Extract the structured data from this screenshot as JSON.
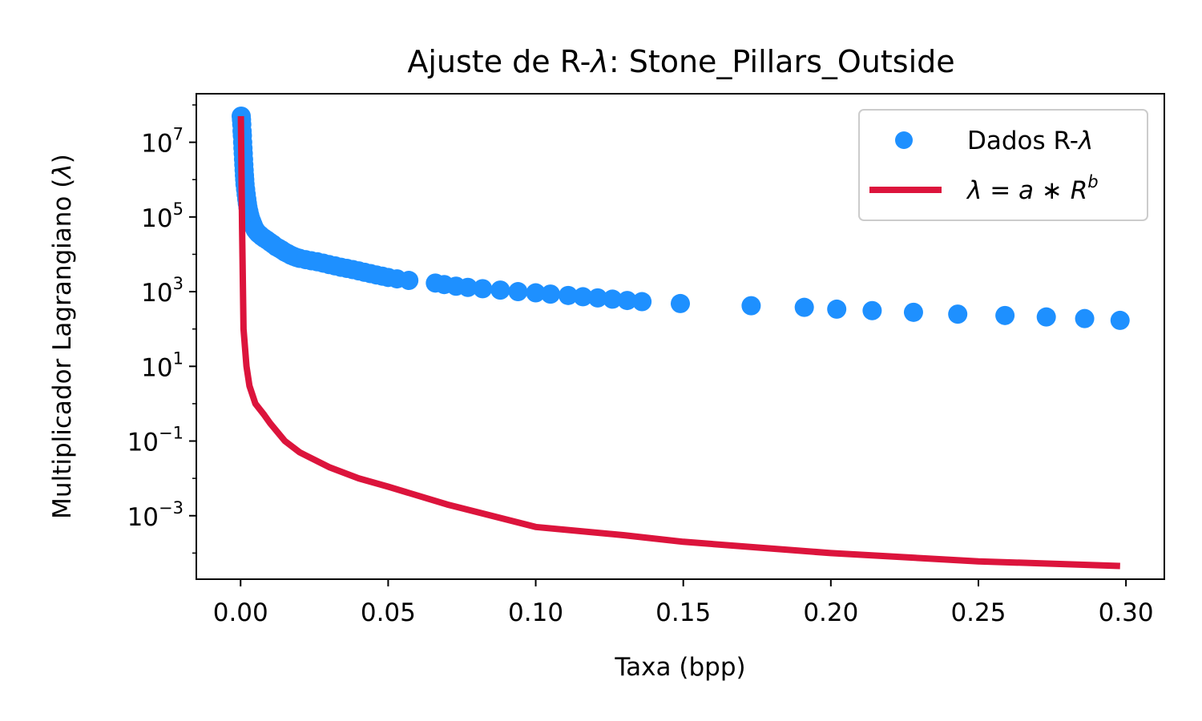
{
  "chart_data": {
    "type": "scatter",
    "title": "Ajuste de R-λ: Stone_Pillars_Outside",
    "xlabel": "Taxa (bpp)",
    "ylabel": "Multiplicador Lagrangiano (λ)",
    "yscale": "log",
    "xlim": [
      -0.015,
      0.313
    ],
    "ylim_log10": [
      -4.7,
      8.3
    ],
    "grid": false,
    "legend_position": "top-right",
    "x_ticks": [
      {
        "value": 0.0,
        "label": "0.00"
      },
      {
        "value": 0.05,
        "label": "0.05"
      },
      {
        "value": 0.1,
        "label": "0.10"
      },
      {
        "value": 0.15,
        "label": "0.15"
      },
      {
        "value": 0.2,
        "label": "0.20"
      },
      {
        "value": 0.25,
        "label": "0.25"
      },
      {
        "value": 0.3,
        "label": "0.30"
      }
    ],
    "y_ticks": [
      {
        "exp": 7,
        "base": "10",
        "sup": "7"
      },
      {
        "exp": 5,
        "base": "10",
        "sup": "5"
      },
      {
        "exp": 3,
        "base": "10",
        "sup": "3"
      },
      {
        "exp": 1,
        "base": "10",
        "sup": "1"
      },
      {
        "exp": -1,
        "base": "10",
        "sup": "−1"
      },
      {
        "exp": -3,
        "base": "10",
        "sup": "−3"
      }
    ],
    "series": [
      {
        "name": "Dados R-λ",
        "kind": "scatter",
        "color": "#1e90ff",
        "x": [
          0.0002,
          0.0003,
          0.0004,
          0.0005,
          0.0006,
          0.0007,
          0.0008,
          0.0009,
          0.001,
          0.0011,
          0.0012,
          0.0013,
          0.0014,
          0.0015,
          0.0017,
          0.0019,
          0.0021,
          0.0023,
          0.0025,
          0.0028,
          0.0031,
          0.0034,
          0.0038,
          0.0042,
          0.0046,
          0.005,
          0.0055,
          0.006,
          0.0066,
          0.0072,
          0.008,
          0.009,
          0.01,
          0.011,
          0.012,
          0.013,
          0.014,
          0.015,
          0.016,
          0.017,
          0.018,
          0.019,
          0.02,
          0.022,
          0.024,
          0.026,
          0.028,
          0.03,
          0.032,
          0.034,
          0.036,
          0.038,
          0.04,
          0.042,
          0.044,
          0.046,
          0.048,
          0.05,
          0.053,
          0.057,
          0.066,
          0.069,
          0.073,
          0.077,
          0.082,
          0.088,
          0.094,
          0.1,
          0.105,
          0.111,
          0.116,
          0.121,
          0.126,
          0.131,
          0.136,
          0.149,
          0.173,
          0.191,
          0.202,
          0.214,
          0.228,
          0.243,
          0.259,
          0.273,
          0.286,
          0.298
        ],
        "y": [
          50000000,
          40000000,
          30000000,
          20000000,
          15000000,
          10000000,
          7000000,
          5000000,
          3500000,
          2500000,
          1800000,
          1300000,
          1000000,
          750000,
          550000,
          400000,
          300000,
          230000,
          180000,
          140000,
          110000,
          90000,
          75000,
          62000,
          52000,
          45000,
          40000,
          36000,
          33000,
          30000,
          27000,
          24000,
          21000,
          18500,
          16000,
          14500,
          13000,
          11500,
          10500,
          9500,
          8800,
          8200,
          7800,
          7200,
          6700,
          6300,
          5800,
          5300,
          4900,
          4500,
          4200,
          3900,
          3600,
          3300,
          3050,
          2800,
          2600,
          2400,
          2200,
          2000,
          1700,
          1550,
          1400,
          1300,
          1200,
          1100,
          1000,
          930,
          860,
          790,
          730,
          680,
          630,
          580,
          540,
          480,
          420,
          380,
          340,
          310,
          280,
          250,
          230,
          210,
          190,
          170
        ]
      },
      {
        "name": "λ = a ∗ R^b",
        "kind": "line",
        "color": "#dc143c",
        "fit_points": {
          "x": [
            0.0001,
            0.0005,
            0.001,
            0.002,
            0.003,
            0.005,
            0.008,
            0.01,
            0.015,
            0.02,
            0.03,
            0.04,
            0.05,
            0.07,
            0.1,
            0.13,
            0.15,
            0.2,
            0.25,
            0.298
          ],
          "y": [
            50000000,
            50000,
            100,
            10,
            3,
            1,
            0.5,
            0.3,
            0.1,
            0.05,
            0.02,
            0.01,
            0.006,
            0.002,
            0.0005,
            0.0003,
            0.0002,
            0.0001,
            6e-05,
            4.5e-05
          ]
        }
      }
    ]
  },
  "legend": {
    "scatter_label": "Dados R-",
    "scatter_symbol": "λ",
    "line_lambda": "λ",
    "line_eq": " = ",
    "line_a": "a",
    "line_op": " ∗ ",
    "line_R": "R",
    "line_b": "b"
  },
  "title_parts": {
    "prefix": "Ajuste de R-",
    "lambda": "λ",
    "suffix": ": Stone_Pillars_Outside"
  },
  "ylabel_parts": {
    "prefix": "Multiplicador Lagrangiano (",
    "lambda": "λ",
    "suffix": ")"
  }
}
